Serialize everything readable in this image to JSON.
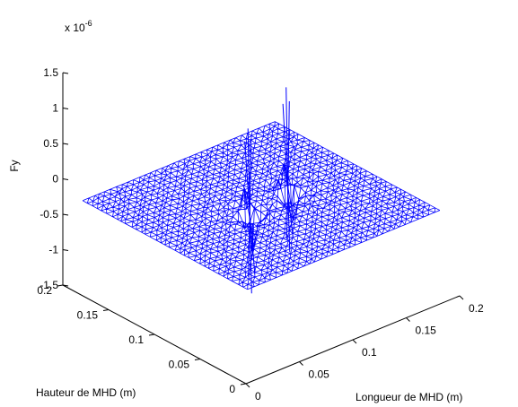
{
  "chart_data": {
    "type": "surface",
    "title": "",
    "xlabel": "Longueur de MHD (m)",
    "ylabel": "Hauteur de MHD (m)",
    "zlabel": "Fy",
    "z_exponent": "x 10",
    "z_exponent_power": "-6",
    "xlim": [
      0,
      0.2
    ],
    "ylim": [
      0,
      0.2
    ],
    "zlim": [
      -1.5,
      1.5
    ],
    "x_ticks": [
      {
        "value": 0,
        "label": "0"
      },
      {
        "value": 0.05,
        "label": "0.05"
      },
      {
        "value": 0.1,
        "label": "0.1"
      },
      {
        "value": 0.15,
        "label": "0.15"
      },
      {
        "value": 0.2,
        "label": "0.2"
      }
    ],
    "y_ticks": [
      {
        "value": 0,
        "label": "0"
      },
      {
        "value": 0.05,
        "label": "0.05"
      },
      {
        "value": 0.1,
        "label": "0.1"
      },
      {
        "value": 0.15,
        "label": "0.15"
      },
      {
        "value": 0.2,
        "label": "0.2"
      }
    ],
    "z_ticks": [
      {
        "value": -1.5,
        "label": "-1.5"
      },
      {
        "value": -1,
        "label": "-1"
      },
      {
        "value": -0.5,
        "label": "-0.5"
      },
      {
        "value": 0,
        "label": "0"
      },
      {
        "value": 0.5,
        "label": "0.5"
      },
      {
        "value": 1,
        "label": "1"
      },
      {
        "value": 1.5,
        "label": "1.5"
      }
    ],
    "surface": {
      "x_range": [
        0.01,
        0.19
      ],
      "y_range": [
        0.01,
        0.19
      ],
      "baseline": -0.3,
      "spikes": [
        {
          "x": 0.085,
          "y": 0.095,
          "peak": 0.9,
          "trough": -1.4
        },
        {
          "x": 0.125,
          "y": 0.1,
          "peak": 1.2,
          "trough": -1.1
        }
      ]
    },
    "mesh_color": "#0000ff",
    "grid": false
  }
}
